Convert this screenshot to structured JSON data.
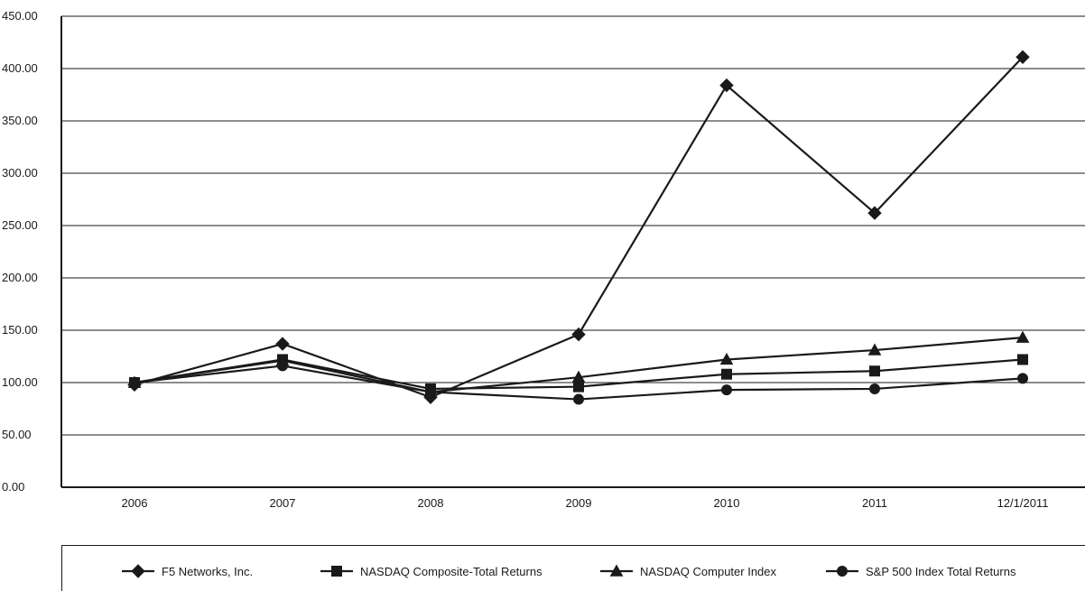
{
  "chart_data": {
    "type": "line",
    "title": "",
    "xlabel": "",
    "ylabel": "",
    "categories": [
      "2006",
      "2007",
      "2008",
      "2009",
      "2010",
      "2011",
      "12/1/2011"
    ],
    "ylim": [
      0,
      450
    ],
    "yticks": [
      "0.00",
      "50.00",
      "100.00",
      "150.00",
      "200.00",
      "250.00",
      "300.00",
      "350.00",
      "400.00",
      "450.00"
    ],
    "grid": "horizontal",
    "legend_position": "bottom",
    "series": [
      {
        "name": "F5 Networks, Inc.",
        "marker": "diamond",
        "values": [
          98,
          137,
          86,
          146,
          384,
          262,
          411
        ]
      },
      {
        "name": "NASDAQ Composite-Total Returns",
        "marker": "square",
        "values": [
          100,
          122,
          94,
          96,
          108,
          111,
          122
        ]
      },
      {
        "name": "NASDAQ Computer Index",
        "marker": "triangle",
        "values": [
          100,
          121,
          91,
          105,
          122,
          131,
          143
        ]
      },
      {
        "name": "S&P 500 Index Total Returns",
        "marker": "circle",
        "values": [
          100,
          116,
          91,
          84,
          93,
          94,
          104
        ]
      }
    ],
    "colors": {
      "line": "#1a1a1a",
      "grid": "#1a1a1a",
      "background": "#ffffff"
    }
  }
}
